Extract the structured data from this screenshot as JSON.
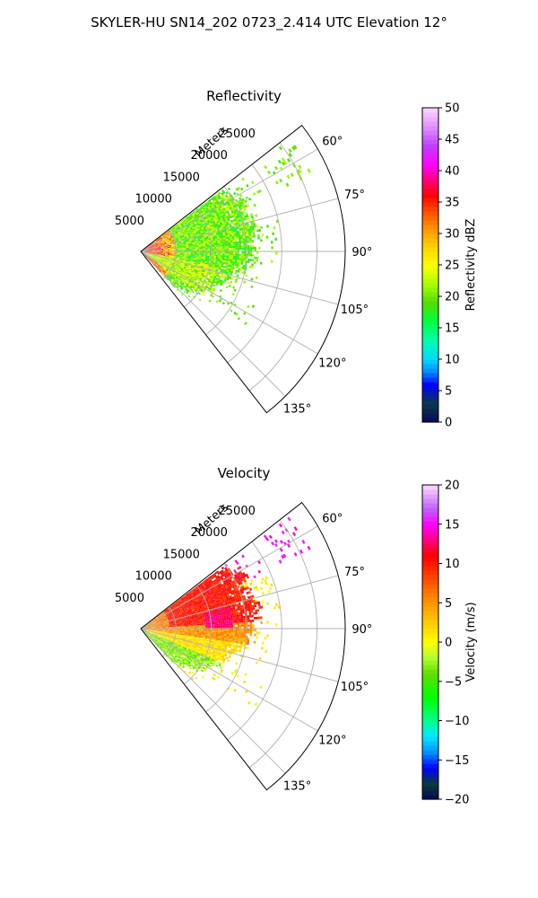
{
  "figure_title": "SKYLER-HU  SN14_202  0723_2.414 UTC Elevation 12°",
  "colors": {
    "grid": "#b0b0b0",
    "axis": "#000000"
  },
  "chart_data": [
    {
      "type": "heatmap",
      "projection": "polar-sector",
      "title": "Reflectivity",
      "radial_label": "Meters",
      "theta_range_deg": [
        52,
        142
      ],
      "theta_ticks_deg": [
        60,
        75,
        90,
        105,
        120,
        135
      ],
      "theta_tick_labels": [
        "60°",
        "75°",
        "90°",
        "105°",
        "120°",
        "135°"
      ],
      "r_range": [
        0,
        29000
      ],
      "r_ticks": [
        5000,
        10000,
        15000,
        20000,
        25000
      ],
      "r_tick_labels": [
        "5000",
        "10000",
        "15000",
        "20000",
        "25000"
      ],
      "grid": true,
      "colorbar": {
        "label": "Reflectivity dBZ",
        "range": [
          0,
          50
        ],
        "ticks": [
          0,
          5,
          10,
          15,
          20,
          25,
          30,
          35,
          40,
          45,
          50
        ],
        "tick_labels": [
          "0",
          "5",
          "10",
          "15",
          "20",
          "25",
          "30",
          "35",
          "40",
          "45",
          "50"
        ]
      },
      "data_summary": {
        "typical_range": [
          15,
          25
        ],
        "near_radar_range": [
          25,
          38
        ]
      }
    },
    {
      "type": "heatmap",
      "projection": "polar-sector",
      "title": "Velocity",
      "radial_label": "Meters",
      "theta_range_deg": [
        52,
        142
      ],
      "theta_ticks_deg": [
        60,
        75,
        90,
        105,
        120,
        135
      ],
      "theta_tick_labels": [
        "60°",
        "75°",
        "90°",
        "105°",
        "120°",
        "135°"
      ],
      "r_range": [
        0,
        29000
      ],
      "r_ticks": [
        5000,
        10000,
        15000,
        20000,
        25000
      ],
      "r_tick_labels": [
        "5000",
        "10000",
        "15000",
        "20000",
        "25000"
      ],
      "grid": true,
      "colorbar": {
        "label": "Velocity (m/s)",
        "range": [
          -20,
          20
        ],
        "ticks": [
          -20,
          -15,
          -10,
          -5,
          0,
          5,
          10,
          15,
          20
        ],
        "tick_labels": [
          "−20",
          "−15",
          "−10",
          "−5",
          "0",
          "5",
          "10",
          "15",
          "20"
        ]
      },
      "data_summary": {
        "upper_sector_range": [
          8,
          12
        ],
        "lower_sector_range": [
          -6,
          2
        ]
      }
    }
  ]
}
